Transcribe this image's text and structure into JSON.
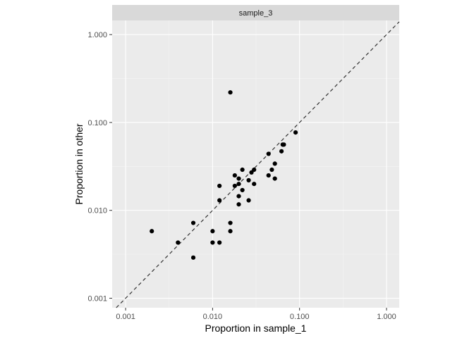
{
  "chart_data": {
    "type": "scatter",
    "facet_label": "sample_3",
    "xlabel": "Proportion in sample_1",
    "ylabel": "Proportion in other",
    "x_scale": "log10",
    "y_scale": "log10",
    "xlim": [
      0.0007,
      1.4
    ],
    "ylim": [
      0.00078,
      1.45
    ],
    "x_ticks": [
      {
        "value": 0.001,
        "label": "0.001"
      },
      {
        "value": 0.01,
        "label": "0.010"
      },
      {
        "value": 0.1,
        "label": "0.100"
      },
      {
        "value": 1.0,
        "label": "1.000"
      }
    ],
    "y_ticks": [
      {
        "value": 0.001,
        "label": "0.001"
      },
      {
        "value": 0.01,
        "label": "0.010"
      },
      {
        "value": 0.1,
        "label": "0.100"
      },
      {
        "value": 1.0,
        "label": "1.000"
      }
    ],
    "reference_line": "y = x",
    "grid": true,
    "points": [
      {
        "x": 0.002,
        "y": 0.0058
      },
      {
        "x": 0.004,
        "y": 0.0043
      },
      {
        "x": 0.006,
        "y": 0.0072
      },
      {
        "x": 0.006,
        "y": 0.0029
      },
      {
        "x": 0.01,
        "y": 0.0058
      },
      {
        "x": 0.01,
        "y": 0.0043
      },
      {
        "x": 0.012,
        "y": 0.019
      },
      {
        "x": 0.012,
        "y": 0.013
      },
      {
        "x": 0.012,
        "y": 0.0043
      },
      {
        "x": 0.016,
        "y": 0.22
      },
      {
        "x": 0.016,
        "y": 0.0072
      },
      {
        "x": 0.016,
        "y": 0.0058
      },
      {
        "x": 0.018,
        "y": 0.025
      },
      {
        "x": 0.018,
        "y": 0.019
      },
      {
        "x": 0.02,
        "y": 0.023
      },
      {
        "x": 0.02,
        "y": 0.02
      },
      {
        "x": 0.02,
        "y": 0.0145
      },
      {
        "x": 0.02,
        "y": 0.0117
      },
      {
        "x": 0.022,
        "y": 0.029
      },
      {
        "x": 0.022,
        "y": 0.017
      },
      {
        "x": 0.026,
        "y": 0.022
      },
      {
        "x": 0.026,
        "y": 0.013
      },
      {
        "x": 0.028,
        "y": 0.027
      },
      {
        "x": 0.03,
        "y": 0.029
      },
      {
        "x": 0.03,
        "y": 0.02
      },
      {
        "x": 0.044,
        "y": 0.044
      },
      {
        "x": 0.044,
        "y": 0.025
      },
      {
        "x": 0.048,
        "y": 0.029
      },
      {
        "x": 0.052,
        "y": 0.034
      },
      {
        "x": 0.052,
        "y": 0.023
      },
      {
        "x": 0.062,
        "y": 0.047
      },
      {
        "x": 0.064,
        "y": 0.056
      },
      {
        "x": 0.066,
        "y": 0.056
      },
      {
        "x": 0.09,
        "y": 0.077
      }
    ]
  }
}
